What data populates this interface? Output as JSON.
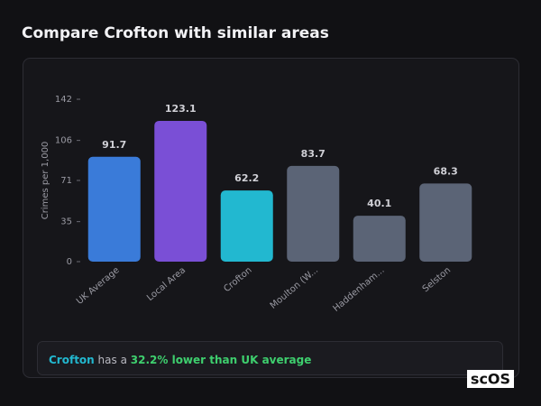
{
  "chart_data": {
    "type": "bar",
    "title": "Compare Crofton with similar areas",
    "y_label": "Crimes per 1,000",
    "categories": [
      "UK Average",
      "Local Area",
      "Crofton",
      "Moulton (W...",
      "Haddenham...",
      "Selston"
    ],
    "values": [
      91.7,
      123.1,
      62.2,
      83.7,
      40.1,
      68.3
    ],
    "colors": [
      "#3a7bd9",
      "#7a4fd6",
      "#22b8d0",
      "#5b6476",
      "#5b6476",
      "#5b6476"
    ],
    "ylim": [
      0,
      142
    ],
    "yticks": [
      0,
      35,
      71,
      106,
      142
    ],
    "grid": false
  },
  "summary": {
    "area": "Crofton",
    "text": "has a",
    "highlight": "32.2% lower than UK average"
  },
  "brand": "scOS"
}
